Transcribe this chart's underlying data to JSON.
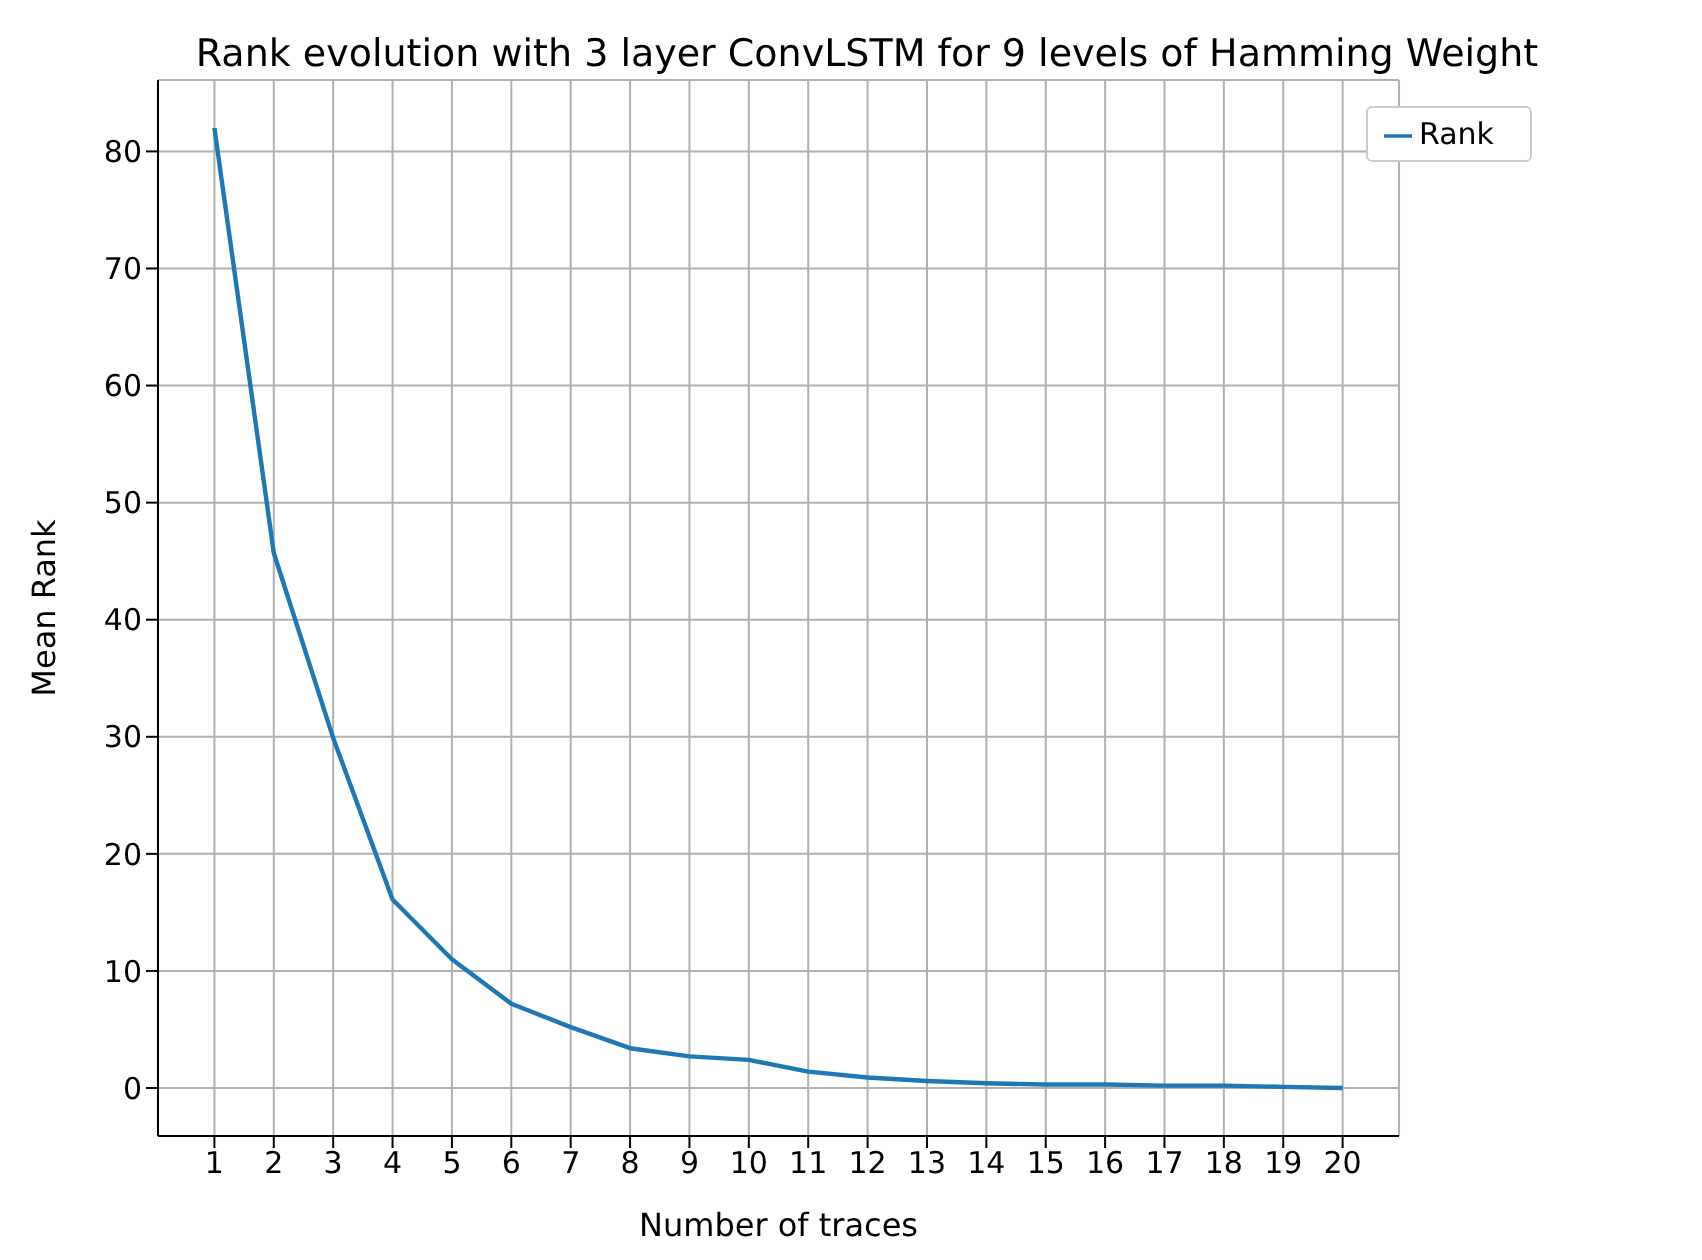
{
  "chart_data": {
    "type": "line",
    "title": "Rank evolution with 3 layer ConvLSTM for 9 levels of Hamming Weight",
    "xlabel": "Number of traces",
    "ylabel": "Mean Rank",
    "x": [
      1,
      2,
      3,
      4,
      5,
      6,
      7,
      8,
      9,
      10,
      11,
      12,
      13,
      14,
      15,
      16,
      17,
      18,
      19,
      20
    ],
    "series": [
      {
        "name": "Rank",
        "color": "#1f77b4",
        "values": [
          82,
          45.7,
          29.9,
          16.1,
          11,
          7.2,
          5.2,
          3.4,
          2.7,
          2.4,
          1.4,
          0.9,
          0.6,
          0.4,
          0.3,
          0.3,
          0.2,
          0.2,
          0.1,
          0
        ]
      }
    ],
    "xlim": [
      0.05,
      20.95
    ],
    "xticks": [
      1,
      2,
      3,
      4,
      5,
      6,
      7,
      8,
      9,
      10,
      11,
      12,
      13,
      14,
      15,
      16,
      17,
      18,
      19,
      20
    ],
    "ylim": [
      -4.1,
      86.1
    ],
    "yticks": [
      0,
      10,
      20,
      30,
      40,
      50,
      60,
      70,
      80
    ],
    "grid": true,
    "legend": "top right",
    "marker": "none",
    "line_style": "solid"
  }
}
